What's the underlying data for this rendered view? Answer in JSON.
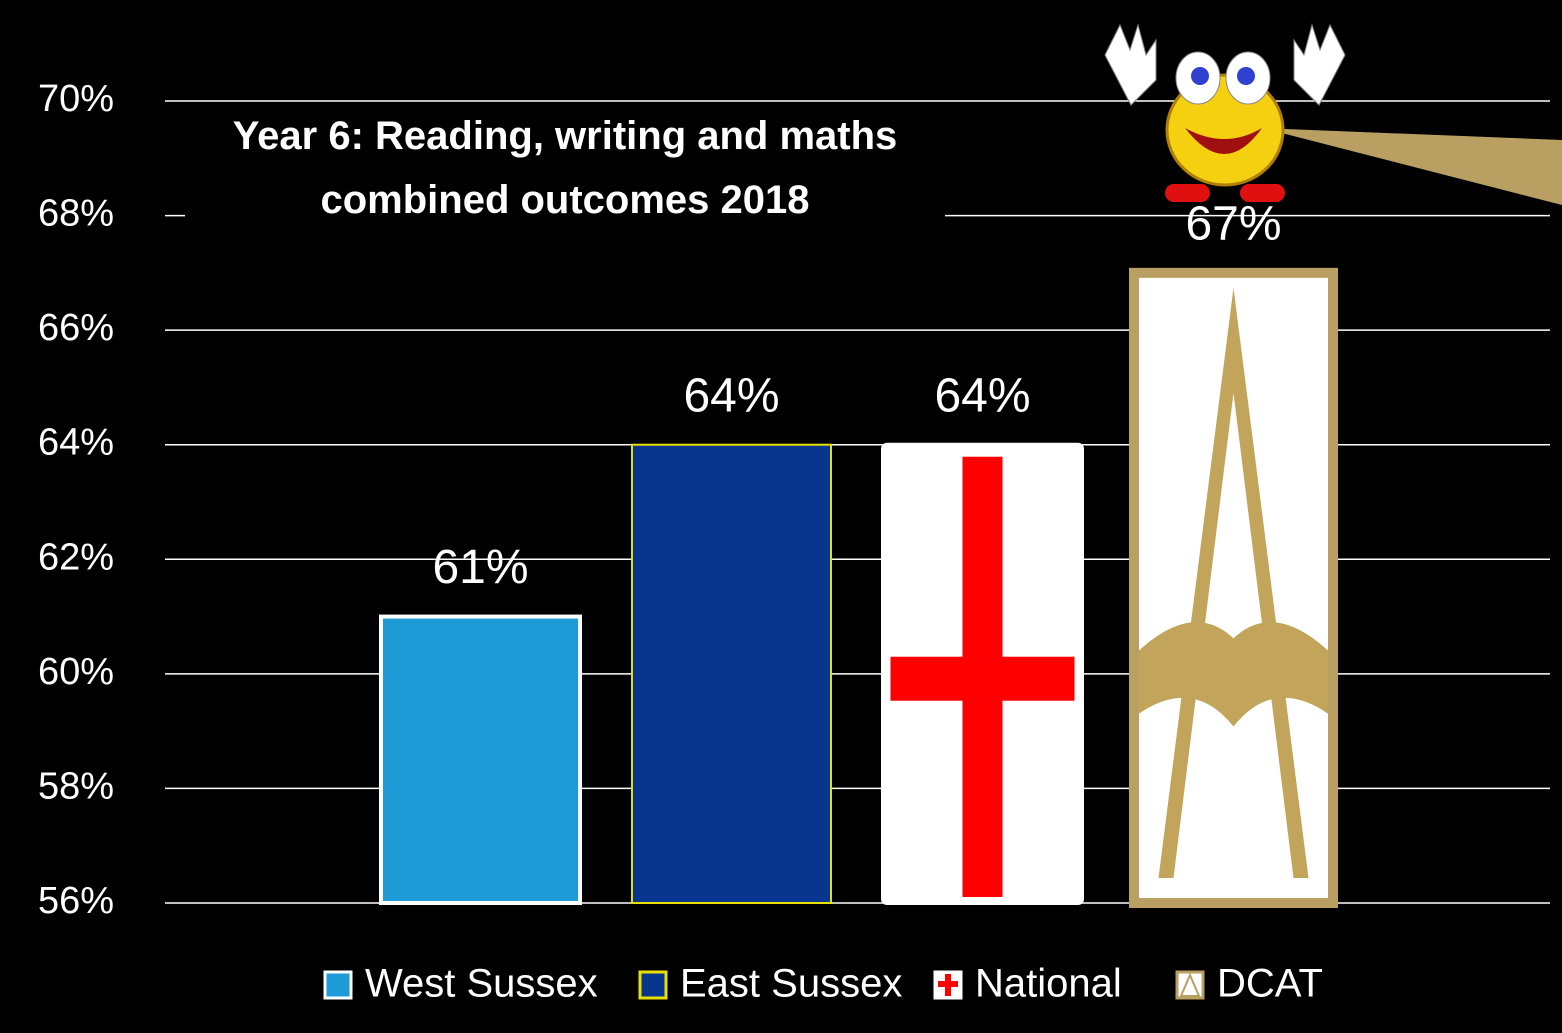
{
  "chart_data": {
    "type": "bar",
    "title": "Year 6: Reading, writing and maths combined outcomes 2018",
    "categories": [
      "West Sussex",
      "East Sussex",
      "National",
      "DCAT"
    ],
    "values": [
      61,
      64,
      64,
      67
    ],
    "value_labels": [
      "61%",
      "64%",
      "64%",
      "67%"
    ],
    "colors": [
      "#1e9ad6",
      "#08368f",
      "#ffffff",
      "#ffffff"
    ],
    "ylim": [
      56,
      70
    ],
    "yticks": [
      {
        "value": 56,
        "label": "56%"
      },
      {
        "value": 58,
        "label": "58%"
      },
      {
        "value": 60,
        "label": "60%"
      },
      {
        "value": 62,
        "label": "62%"
      },
      {
        "value": 64,
        "label": "64%"
      },
      {
        "value": 66,
        "label": "66%"
      },
      {
        "value": 68,
        "label": "68%"
      },
      {
        "value": 70,
        "label": "70%"
      }
    ],
    "grid": true
  }
}
